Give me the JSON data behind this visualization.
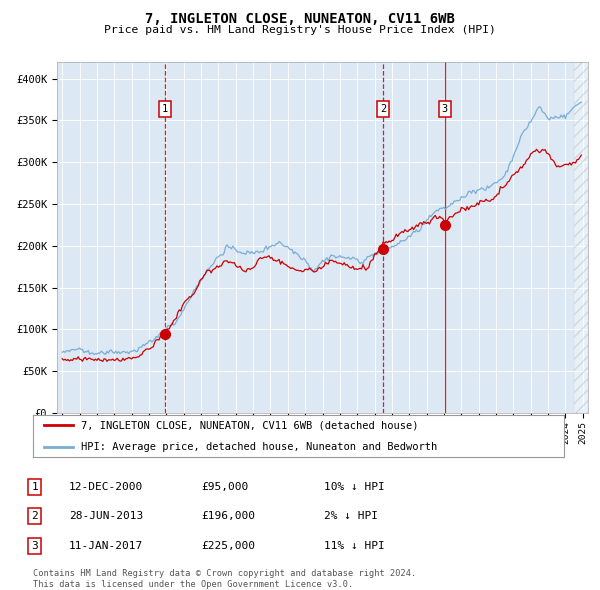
{
  "title": "7, INGLETON CLOSE, NUNEATON, CV11 6WB",
  "subtitle": "Price paid vs. HM Land Registry's House Price Index (HPI)",
  "legend_red": "7, INGLETON CLOSE, NUNEATON, CV11 6WB (detached house)",
  "legend_blue": "HPI: Average price, detached house, Nuneaton and Bedworth",
  "footer1": "Contains HM Land Registry data © Crown copyright and database right 2024.",
  "footer2": "This data is licensed under the Open Government Licence v3.0.",
  "table_rows": [
    {
      "num": "1",
      "date_str": "12-DEC-2000",
      "price_str": "£95,000",
      "pct_str": "10% ↓ HPI"
    },
    {
      "num": "2",
      "date_str": "28-JUN-2013",
      "price_str": "£196,000",
      "pct_str": "2% ↓ HPI"
    },
    {
      "num": "3",
      "date_str": "11-JAN-2017",
      "price_str": "£225,000",
      "pct_str": "11% ↓ HPI"
    }
  ],
  "yticks": [
    0,
    50000,
    100000,
    150000,
    200000,
    250000,
    300000,
    350000,
    400000
  ],
  "ytick_labels": [
    "£0",
    "£50K",
    "£100K",
    "£150K",
    "£200K",
    "£250K",
    "£300K",
    "£350K",
    "£400K"
  ],
  "bg_color": "#dce9f5",
  "red_color": "#cc0000",
  "blue_color": "#7aadd4",
  "trans_years": [
    2000.92,
    2013.5,
    2017.04
  ],
  "trans_prices": [
    95000,
    196000,
    225000
  ],
  "trans_labels": [
    "1",
    "2",
    "3"
  ],
  "trans_linestyles": [
    "--",
    "--",
    "-"
  ],
  "hpi_anchors_x": [
    1995.0,
    1997.0,
    1999.0,
    2000.0,
    2001.5,
    2002.5,
    2003.5,
    2004.5,
    2005.5,
    2006.5,
    2007.5,
    2008.5,
    2009.5,
    2010.5,
    2011.5,
    2012.5,
    2013.5,
    2014.5,
    2015.5,
    2016.5,
    2017.5,
    2018.5,
    2019.5,
    2020.5,
    2021.5,
    2022.5,
    2023.0,
    2024.0,
    2024.9
  ],
  "hpi_anchors_y": [
    72000,
    75000,
    82000,
    92000,
    115000,
    150000,
    185000,
    208000,
    198000,
    203000,
    215000,
    200000,
    178000,
    192000,
    192000,
    185000,
    195000,
    205000,
    220000,
    240000,
    255000,
    268000,
    272000,
    285000,
    330000,
    362000,
    348000,
    355000,
    372000
  ],
  "red_anchors_x": [
    1995.0,
    1997.0,
    1999.0,
    2000.92,
    2003.0,
    2004.5,
    2005.5,
    2007.0,
    2008.5,
    2009.5,
    2010.5,
    2011.5,
    2012.5,
    2013.5,
    2014.5,
    2015.5,
    2016.5,
    2017.04,
    2018.0,
    2019.0,
    2020.0,
    2021.0,
    2022.0,
    2022.8,
    2023.5,
    2024.5,
    2024.9
  ],
  "red_anchors_y": [
    63000,
    67000,
    73000,
    95000,
    158000,
    183000,
    168000,
    188000,
    162000,
    155000,
    170000,
    168000,
    163000,
    196000,
    205000,
    220000,
    235000,
    225000,
    245000,
    254000,
    258000,
    282000,
    310000,
    315000,
    298000,
    303000,
    308000
  ],
  "hatch_start": 2024.5,
  "xlim_left": 1994.7,
  "xlim_right": 2025.3,
  "ylim_top": 420000
}
